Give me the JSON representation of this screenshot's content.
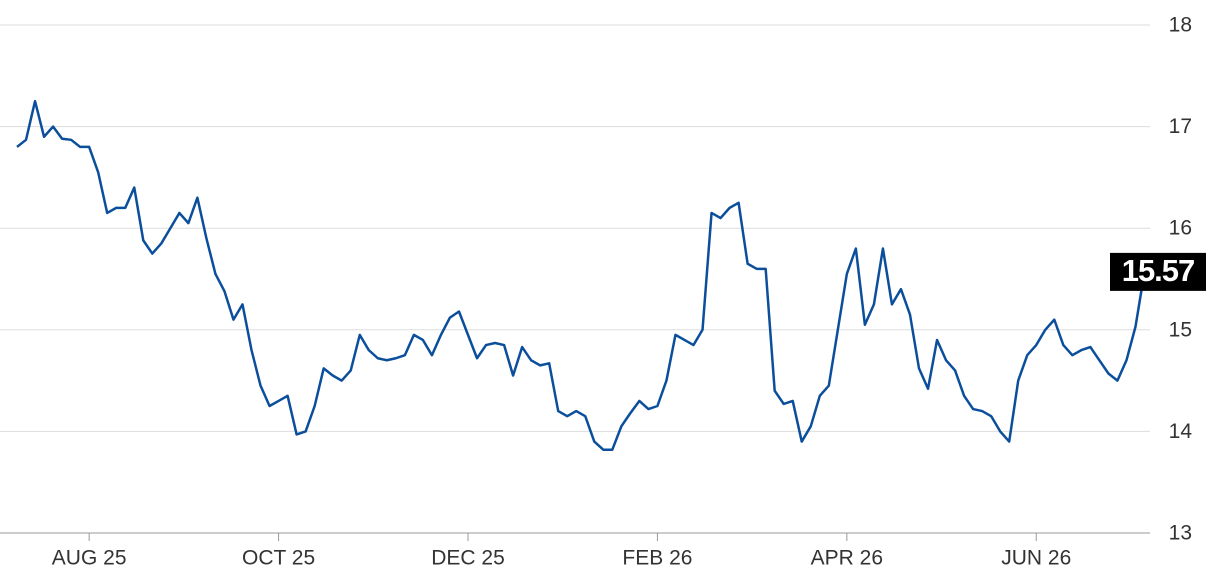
{
  "chart_data": {
    "type": "line",
    "categories": [
      null,
      null,
      null,
      null,
      null,
      null,
      null,
      null,
      "AUG 25",
      null,
      null,
      null,
      null,
      null,
      null,
      null,
      null,
      null,
      null,
      null,
      null,
      null,
      null,
      null,
      null,
      null,
      null,
      null,
      null,
      "OCT 25",
      null,
      null,
      null,
      null,
      null,
      null,
      null,
      null,
      null,
      null,
      null,
      null,
      null,
      null,
      null,
      null,
      null,
      null,
      null,
      null,
      "DEC 25",
      null,
      null,
      null,
      null,
      null,
      null,
      null,
      null,
      null,
      null,
      null,
      null,
      null,
      null,
      null,
      null,
      null,
      null,
      null,
      null,
      "FEB 26",
      null,
      null,
      null,
      null,
      null,
      null,
      null,
      null,
      null,
      null,
      null,
      null,
      null,
      null,
      null,
      null,
      null,
      null,
      null,
      null,
      "APR 26",
      null,
      null,
      null,
      null,
      null,
      null,
      null,
      null,
      null,
      null,
      null,
      null,
      null,
      null,
      null,
      null,
      null,
      null,
      null,
      null,
      "JUN 26",
      null,
      null,
      null,
      null,
      null,
      null,
      null,
      null,
      null,
      null,
      null,
      null
    ],
    "values": [
      16.8,
      16.87,
      17.25,
      16.9,
      17.0,
      16.88,
      16.87,
      16.8,
      16.8,
      16.55,
      16.15,
      16.2,
      16.2,
      16.4,
      15.88,
      15.75,
      15.85,
      16.0,
      16.15,
      16.05,
      16.3,
      15.9,
      15.55,
      15.38,
      15.1,
      15.25,
      14.8,
      14.45,
      14.25,
      14.3,
      14.35,
      13.97,
      14.0,
      14.25,
      14.62,
      14.55,
      14.5,
      14.6,
      14.95,
      14.8,
      14.72,
      14.7,
      14.72,
      14.75,
      14.95,
      14.9,
      14.75,
      14.95,
      15.12,
      15.18,
      14.95,
      14.72,
      14.85,
      14.87,
      14.85,
      14.55,
      14.83,
      14.7,
      14.65,
      14.67,
      14.2,
      14.15,
      14.2,
      14.15,
      13.9,
      13.82,
      13.82,
      14.05,
      14.18,
      14.3,
      14.22,
      14.25,
      14.5,
      14.95,
      14.9,
      14.85,
      15.0,
      16.15,
      16.1,
      16.2,
      16.25,
      15.65,
      15.6,
      15.6,
      14.4,
      14.27,
      14.3,
      13.9,
      14.05,
      14.35,
      14.45,
      15.0,
      15.55,
      15.8,
      15.05,
      15.25,
      15.8,
      15.25,
      15.4,
      15.15,
      14.62,
      14.42,
      14.9,
      14.7,
      14.6,
      14.35,
      14.22,
      14.2,
      14.15,
      14.0,
      13.9,
      14.5,
      14.75,
      14.85,
      15.0,
      15.1,
      14.85,
      14.75,
      14.8,
      14.83,
      14.7,
      14.57,
      14.5,
      14.7,
      15.03,
      15.57
    ],
    "color": "#0b4f9c",
    "ylim": [
      13,
      18
    ],
    "yticks": [
      13,
      14,
      15,
      16,
      17,
      18
    ],
    "grid": true
  }
}
